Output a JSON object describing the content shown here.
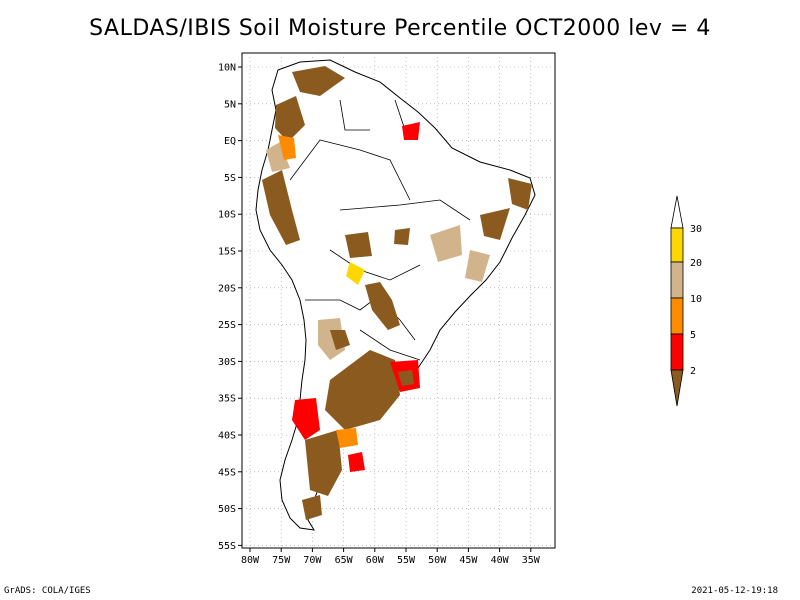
{
  "title": "SALDAS/IBIS Soil Moisture Percentile OCT2000 lev = 4",
  "map": {
    "lon_ticks": [
      "80W",
      "75W",
      "70W",
      "65W",
      "60W",
      "55W",
      "50W",
      "45W",
      "40W",
      "35W"
    ],
    "lat_ticks": [
      "10N",
      "5N",
      "EQ",
      "5S",
      "10S",
      "15S",
      "20S",
      "25S",
      "30S",
      "35S",
      "40S",
      "45S",
      "50S",
      "55S"
    ]
  },
  "legend": {
    "labels": [
      "2",
      "5",
      "10",
      "20",
      "30"
    ],
    "colors": {
      "below_2": "#8B5A1E",
      "2_5": "#FF0000",
      "5_10": "#FF8C00",
      "10_20": "#D2B48C",
      "20_30": "#FFD700",
      "above_30": "#FFFFFF"
    }
  },
  "footer": {
    "left": "GrADS: COLA/IGES",
    "right": "2021-05-12-19:18"
  }
}
